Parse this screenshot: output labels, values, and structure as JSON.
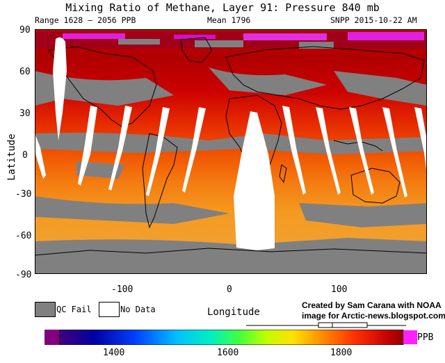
{
  "header": {
    "title": "Mixing Ratio of Methane, Layer 91: Pressure 840 mb",
    "range_label": "Range 1628 – 2056 PPB",
    "mean_label": "Mean 1796",
    "source_label": "SNPP 2015-10-22 AM"
  },
  "axes": {
    "ylabel": "Latitude",
    "xlabel": "Longitude",
    "yticks": [
      "90",
      "60",
      "30",
      "0",
      "-30",
      "-60",
      "-90"
    ],
    "xticks": [
      "-100",
      "0",
      "100"
    ]
  },
  "legend": {
    "qc_fail_label": "QC Fail",
    "no_data_label": "No Data",
    "qc_fail_color": "#808080",
    "no_data_color": "#ffffff"
  },
  "credit": {
    "line1": "Created by Sam Carana with NOAA",
    "line2": "image for Arctic-news.blogspot.com"
  },
  "colorbar": {
    "unit": "PPB",
    "ticks": [
      "1400",
      "1600",
      "1800"
    ]
  }
}
